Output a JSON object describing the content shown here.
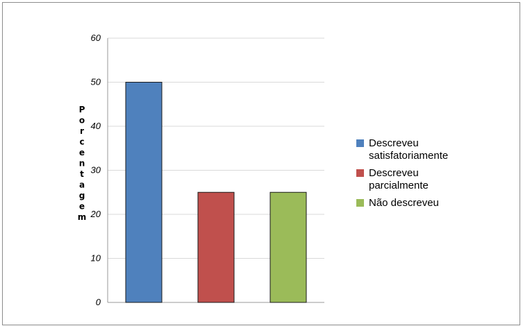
{
  "chart_data": {
    "type": "bar",
    "title": "",
    "xlabel": "",
    "ylabel": "Porcentagem",
    "ylim": [
      0,
      60
    ],
    "yticks": [
      0,
      10,
      20,
      30,
      40,
      50,
      60
    ],
    "grid": true,
    "legend_position": "right",
    "categories": [
      "Descreveu satisfatoriamente",
      "Descreveu parcialmente",
      "Não descreveu"
    ],
    "values": [
      50,
      25,
      25
    ],
    "colors": [
      "#4f81bd",
      "#c0504d",
      "#9bbb59"
    ],
    "legend": [
      {
        "lines": [
          "Descreveu",
          "satisfatoriamente"
        ],
        "color": "#4f81bd"
      },
      {
        "lines": [
          "Descreveu",
          "parcialmente"
        ],
        "color": "#c0504d"
      },
      {
        "lines": [
          "Não descreveu"
        ],
        "color": "#9bbb59"
      }
    ]
  }
}
